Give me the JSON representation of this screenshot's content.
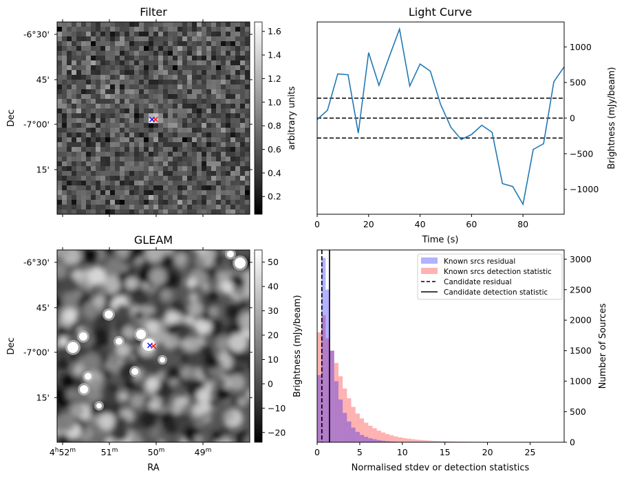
{
  "chart_data": [
    {
      "type": "heatmap",
      "name": "filter",
      "title": "Filter",
      "xlabel": "",
      "ylabel": "Dec",
      "dec_tick_labels": [
        "-6°30'",
        "45'",
        "-7°00'",
        "15'"
      ],
      "colorbar": {
        "label": "arbitrary units",
        "range": [
          0.05,
          1.68
        ],
        "ticks": [
          0.2,
          0.4,
          0.6,
          0.8,
          1.0,
          1.2,
          1.4,
          1.6
        ],
        "tick_labels": [
          "0.2",
          "0.4",
          "0.6",
          "0.8",
          "1.0",
          "1.2",
          "1.4",
          "1.6"
        ]
      },
      "markers": [
        {
          "symbol": "x",
          "color": "#0000ff",
          "name": "blue marker"
        },
        {
          "symbol": "x",
          "color": "#ff0000",
          "name": "red marker"
        }
      ]
    },
    {
      "type": "line",
      "name": "light_curve",
      "title": "Light Curve",
      "xlabel": "Time (s)",
      "ylabel": "Brightness (mJy/beam)",
      "xlim": [
        0,
        96
      ],
      "ylim": [
        -1350,
        1350
      ],
      "x_ticks": [
        0,
        20,
        40,
        60,
        80
      ],
      "x_tick_labels": [
        "0",
        "20",
        "40",
        "60",
        "80"
      ],
      "y_ticks": [
        -1000,
        -500,
        0,
        500,
        1000
      ],
      "y_tick_labels": [
        "−1000",
        "−500",
        "0",
        "500",
        "1000"
      ],
      "series": [
        {
          "name": "light curve",
          "color": "#1f77b4",
          "x": [
            0,
            4,
            8,
            12,
            16,
            20,
            24,
            28,
            32,
            36,
            40,
            44,
            48,
            52,
            56,
            60,
            64,
            68,
            72,
            76,
            80,
            84,
            88,
            92,
            96
          ],
          "y": [
            -20,
            110,
            620,
            610,
            -210,
            920,
            460,
            860,
            1250,
            450,
            760,
            660,
            190,
            -130,
            -300,
            -230,
            -100,
            -200,
            -920,
            -960,
            -1210,
            -440,
            -360,
            510,
            720
          ]
        }
      ],
      "hlines": [
        {
          "y": 280,
          "style": "dashed",
          "color": "#000000"
        },
        {
          "y": 0,
          "style": "dashed",
          "color": "#000000"
        },
        {
          "y": -280,
          "style": "dashed",
          "color": "#000000"
        }
      ]
    },
    {
      "type": "heatmap",
      "name": "gleam",
      "title": "GLEAM",
      "xlabel": "RA",
      "ylabel": "Dec",
      "ra_tick_labels": [
        {
          "main": "4",
          "sup1": "h",
          "mid": "52",
          "sup2": "m"
        },
        {
          "main": "51",
          "sup1": "m",
          "mid": "",
          "sup2": ""
        },
        {
          "main": "50",
          "sup1": "m",
          "mid": "",
          "sup2": ""
        },
        {
          "main": "49",
          "sup1": "m",
          "mid": "",
          "sup2": ""
        }
      ],
      "dec_tick_labels": [
        "-6°30'",
        "45'",
        "-7°00'",
        "15'"
      ],
      "colorbar": {
        "label": "Brightness (mJy/beam)",
        "range": [
          -24,
          55
        ],
        "ticks": [
          -20,
          -10,
          0,
          10,
          20,
          30,
          40,
          50
        ],
        "tick_labels": [
          "−20",
          "−10",
          "0",
          "10",
          "20",
          "30",
          "40",
          "50"
        ]
      },
      "markers": [
        {
          "symbol": "x",
          "color": "#0000ff",
          "name": "blue marker"
        },
        {
          "symbol": "x",
          "color": "#ff0000",
          "name": "red marker"
        }
      ]
    },
    {
      "type": "bar",
      "name": "histogram",
      "title": "",
      "xlabel": "Normalised stdev or detection statistics",
      "ylabel": "Number of Sources",
      "xlim": [
        0,
        29
      ],
      "ylim": [
        0,
        3150
      ],
      "x_ticks": [
        0,
        5,
        10,
        15,
        20,
        25
      ],
      "x_tick_labels": [
        "0",
        "5",
        "10",
        "15",
        "20",
        "25"
      ],
      "y_ticks": [
        0,
        500,
        1000,
        1500,
        2000,
        2500,
        3000
      ],
      "y_tick_labels": [
        "0",
        "500",
        "1000",
        "1500",
        "2000",
        "2500",
        "3000"
      ],
      "bin_width": 0.5,
      "series": [
        {
          "name": "Known srcs residual",
          "color": "#0000ff",
          "alpha": 0.3,
          "bin_starts": [
            0,
            0.5,
            1,
            1.5,
            2,
            2.5,
            3,
            3.5,
            4,
            4.5,
            5,
            5.5,
            6,
            6.5,
            7,
            7.5,
            8,
            8.5,
            9,
            9.5,
            10
          ],
          "counts": [
            1100,
            3020,
            2500,
            1500,
            1000,
            700,
            480,
            340,
            240,
            170,
            120,
            90,
            65,
            50,
            35,
            25,
            18,
            12,
            8,
            5,
            3
          ]
        },
        {
          "name": "Known srcs detection statistic",
          "color": "#ff0000",
          "alpha": 0.3,
          "bin_starts": [
            0,
            0.5,
            1,
            1.5,
            2,
            2.5,
            3,
            3.5,
            4,
            4.5,
            5,
            5.5,
            6,
            6.5,
            7,
            7.5,
            8,
            8.5,
            9,
            9.5,
            10,
            10.5,
            11,
            11.5,
            12,
            12.5,
            13,
            13.5,
            14,
            14.5,
            15,
            15.5,
            16,
            16.5,
            17,
            17.5,
            18,
            18.5,
            19,
            19.5,
            20,
            20.5,
            21,
            21.5,
            22,
            22.5,
            23,
            23.5,
            24,
            24.5,
            25,
            25.5,
            26,
            26.5,
            27,
            27.5
          ],
          "counts": [
            1800,
            2080,
            1700,
            1500,
            1300,
            1080,
            880,
            720,
            580,
            470,
            390,
            320,
            270,
            230,
            190,
            160,
            135,
            115,
            95,
            80,
            68,
            58,
            50,
            42,
            36,
            31,
            26,
            22,
            19,
            17,
            15,
            13,
            11,
            10,
            9,
            8,
            7,
            6,
            5,
            5,
            4,
            4,
            3,
            3,
            3,
            2,
            2,
            2,
            2,
            1,
            1,
            1,
            1,
            1,
            1,
            1
          ]
        }
      ],
      "vlines": [
        {
          "name": "Candidate residual",
          "x": 0.55,
          "style": "dashed",
          "color": "#000000"
        },
        {
          "name": "Candidate detection statistic",
          "x": 1.45,
          "style": "solid",
          "color": "#000000"
        }
      ],
      "legend": {
        "placement": "top-right",
        "entries": [
          "Known srcs residual",
          "Known srcs detection statistic",
          "Candidate residual",
          "Candidate detection statistic"
        ]
      }
    }
  ]
}
